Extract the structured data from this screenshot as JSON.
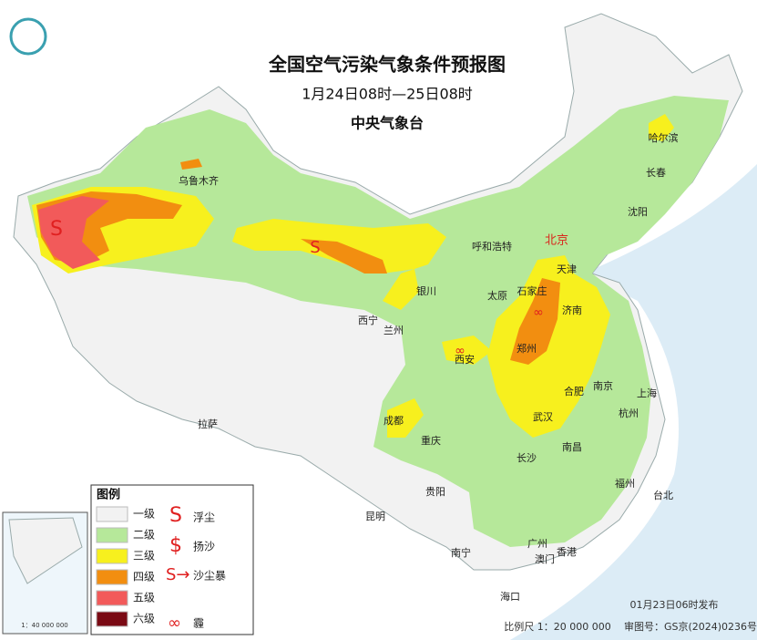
{
  "header": {
    "title": "全国空气污染气象条件预报图",
    "subtitle": "1月24日08时—25日08时",
    "issuer": "中央气象台"
  },
  "cities": [
    "乌鲁木齐",
    "哈尔滨",
    "长春",
    "沈阳",
    "呼和浩特",
    "北京",
    "天津",
    "银川",
    "太原",
    "石家庄",
    "济南",
    "西宁",
    "兰州",
    "西安",
    "郑州",
    "合肥",
    "南京",
    "上海",
    "杭州",
    "武汉",
    "成都",
    "重庆",
    "拉萨",
    "长沙",
    "南昌",
    "贵阳",
    "福州",
    "台北",
    "昆明",
    "南宁",
    "广州",
    "澳门",
    "香港",
    "海口"
  ],
  "legend": {
    "title": "图例",
    "levels": [
      "一级",
      "二级",
      "三级",
      "四级",
      "五级",
      "六级"
    ],
    "symbols": [
      "浮尘",
      "扬沙",
      "沙尘暴",
      "霾"
    ]
  },
  "inset": {
    "scale": "1：40 000 000"
  },
  "footer": {
    "issued": "01月23日06时发布",
    "scale": "比例尺  1：20 000 000",
    "approval": "审图号：GS京(2024)0236号"
  }
}
